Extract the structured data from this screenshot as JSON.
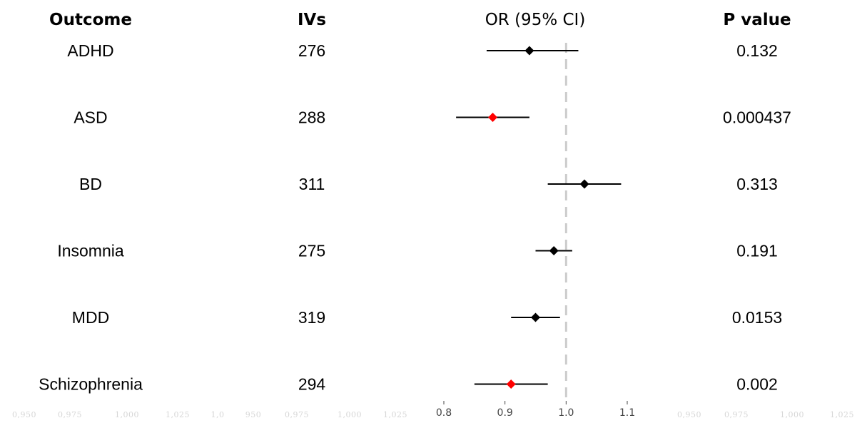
{
  "headers": {
    "outcome": "Outcome",
    "ivs": "IVs",
    "or": "OR (95% CI)",
    "p": "P value"
  },
  "colors": {
    "significant": "#ff0000",
    "default": "#000000",
    "refline": "#cccccc"
  },
  "faint_ticks": {
    "left": [
      "0,950",
      "0,975",
      "1,000",
      "1,025",
      "1,0",
      "950",
      "0,975",
      "1,000",
      "1,025"
    ],
    "right": [
      "0,950",
      "0,975",
      "1,000",
      "1,025"
    ]
  },
  "chart_data": {
    "type": "forest",
    "columns": [
      "Outcome",
      "IVs",
      "OR (95% CI)",
      "P value"
    ],
    "xlim": [
      0.8,
      1.1
    ],
    "xticks": [
      "0.8",
      "0.9",
      "1.0",
      "1.1"
    ],
    "reference_line": 1.0,
    "rows": [
      {
        "outcome": "ADHD",
        "ivs": "276",
        "or": 0.94,
        "lo": 0.87,
        "hi": 1.02,
        "p": "0.132",
        "significant": false
      },
      {
        "outcome": "ASD",
        "ivs": "288",
        "or": 0.88,
        "lo": 0.82,
        "hi": 0.94,
        "p": "0.000437",
        "significant": true
      },
      {
        "outcome": "BD",
        "ivs": "311",
        "or": 1.03,
        "lo": 0.97,
        "hi": 1.09,
        "p": "0.313",
        "significant": false
      },
      {
        "outcome": "Insomnia",
        "ivs": "275",
        "or": 0.98,
        "lo": 0.95,
        "hi": 1.01,
        "p": "0.191",
        "significant": false
      },
      {
        "outcome": "MDD",
        "ivs": "319",
        "or": 0.95,
        "lo": 0.91,
        "hi": 0.99,
        "p": "0.0153",
        "significant": false
      },
      {
        "outcome": "Schizophrenia",
        "ivs": "294",
        "or": 0.91,
        "lo": 0.85,
        "hi": 0.97,
        "p": "0.002",
        "significant": true
      }
    ]
  }
}
